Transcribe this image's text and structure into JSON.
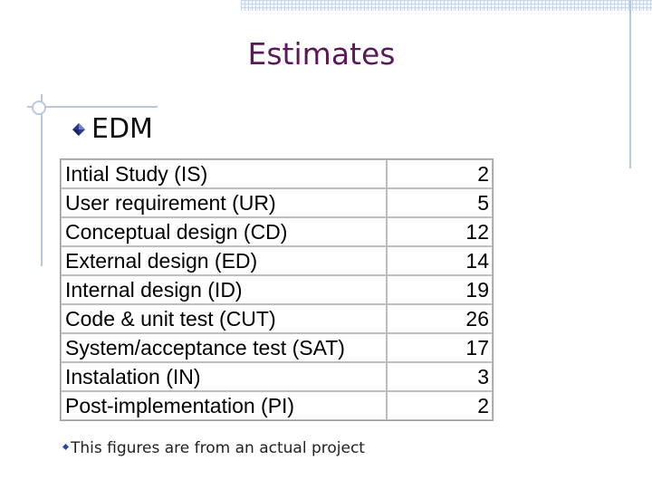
{
  "slide": {
    "title": "Estimates",
    "section_heading": "EDM",
    "footnote": "This figures are from an actual project"
  },
  "table": {
    "rows": [
      {
        "phase": "Intial Study (IS)",
        "value": "2"
      },
      {
        "phase": "User requirement (UR)",
        "value": "5"
      },
      {
        "phase": "Conceptual design (CD)",
        "value": "12"
      },
      {
        "phase": "External design (ED)",
        "value": "14"
      },
      {
        "phase": "Internal design (ID)",
        "value": "19"
      },
      {
        "phase": "Code & unit test (CUT)",
        "value": "26"
      },
      {
        "phase": "System/acceptance test (SAT)",
        "value": "17"
      },
      {
        "phase": "Instalation (IN)",
        "value": "3"
      },
      {
        "phase": "Post-implementation (PI)",
        "value": "2"
      }
    ]
  },
  "colors": {
    "title": "#5a1a5a",
    "bullet_blue": "#2a4a9a",
    "decor_lines": "#b9c8dc"
  },
  "icons": {
    "section_bullet": "diamond-bullet-icon",
    "footnote_bullet": "small-diamond-bullet-icon"
  }
}
